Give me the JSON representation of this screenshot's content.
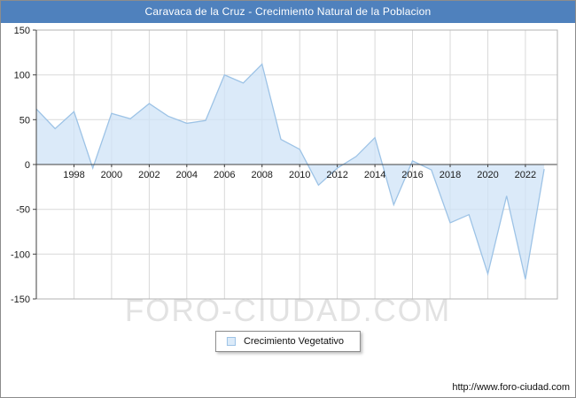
{
  "title_bar": {
    "text": "Caravaca de la Cruz - Crecimiento Natural de la Poblacion"
  },
  "watermark_text": "FORO-CIUDAD.COM",
  "legend": {
    "label": "Crecimiento Vegetativo"
  },
  "footer_url": "http://www.foro-ciudad.com",
  "colors": {
    "title_bg": "#4f81bd",
    "title_text": "#ffffff",
    "line": "#9dc3e6",
    "fill": "#cfe3f7",
    "grid": "#d9d9d9",
    "zero_line": "#404040",
    "plot_border": "#b3b3b3",
    "watermark": "#e2e2e2"
  },
  "chart_data": {
    "type": "area",
    "title": "Caravaca de la Cruz - Crecimiento Natural de la Poblacion",
    "series_name": "Crecimiento Vegetativo",
    "x": [
      1996,
      1997,
      1998,
      1999,
      2000,
      2001,
      2002,
      2003,
      2004,
      2005,
      2006,
      2007,
      2008,
      2009,
      2010,
      2011,
      2012,
      2013,
      2014,
      2015,
      2016,
      2017,
      2018,
      2019,
      2020,
      2021,
      2022,
      2023
    ],
    "values": [
      62,
      40,
      59,
      -4,
      57,
      51,
      68,
      54,
      46,
      49,
      100,
      91,
      112,
      28,
      17,
      -23,
      -4,
      9,
      30,
      -45,
      4,
      -6,
      -65,
      -56,
      -122,
      -35,
      -128,
      -5
    ],
    "xlim": [
      1996,
      2023.7
    ],
    "ylim": [
      -150,
      150
    ],
    "xticks": [
      1998,
      2000,
      2002,
      2004,
      2006,
      2008,
      2010,
      2012,
      2014,
      2016,
      2018,
      2020,
      2022
    ],
    "yticks": [
      -150,
      -100,
      -50,
      0,
      50,
      100,
      150
    ],
    "grid": true,
    "legend_position": "bottom",
    "xlabel": "",
    "ylabel": ""
  }
}
